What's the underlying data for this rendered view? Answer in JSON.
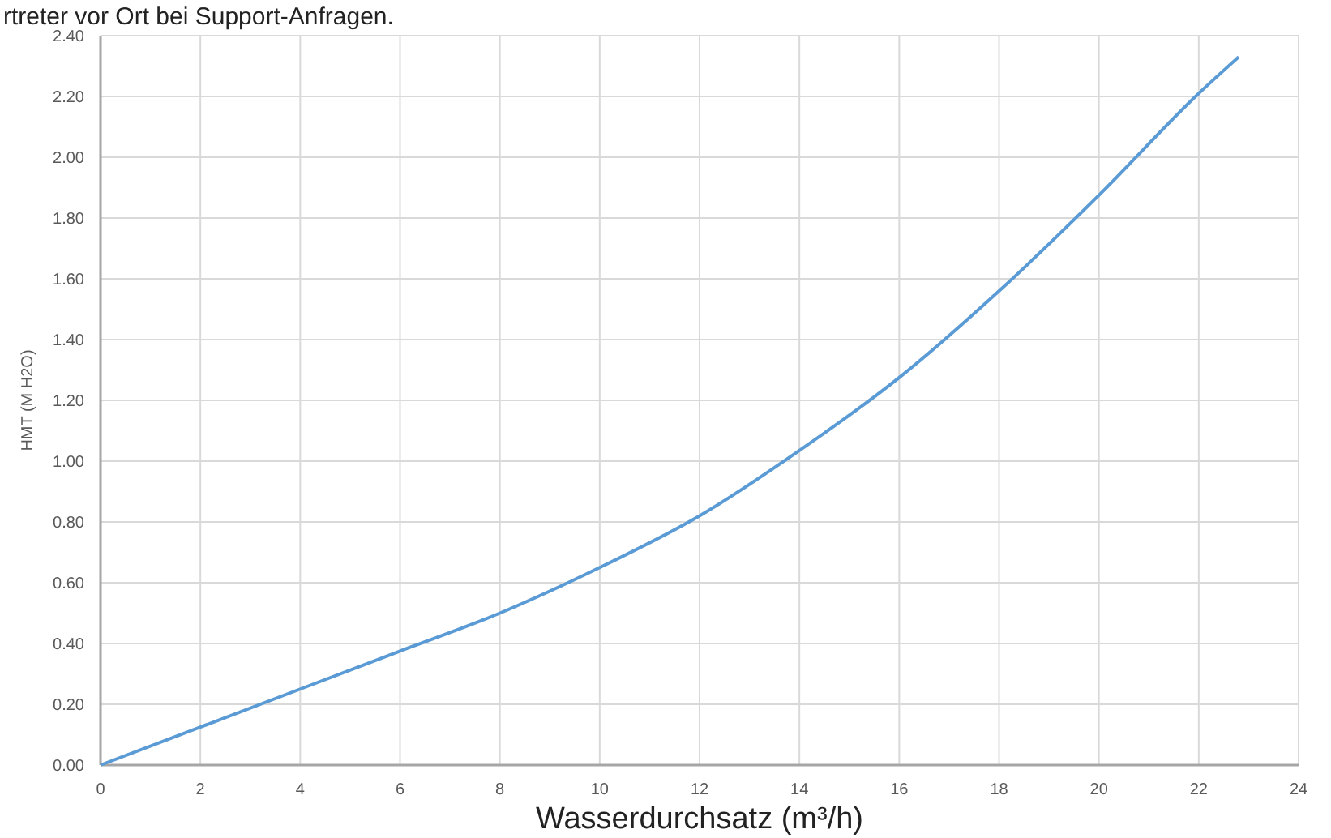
{
  "chart_data": {
    "type": "line",
    "xlabel": "Wasserdurchsatz (m³/h)",
    "ylabel": "HMT (M H2O)",
    "annotations": [
      "rtreter vor Ort bei Support-Anfragen."
    ],
    "x": [
      0,
      2,
      4,
      6,
      8,
      10,
      12,
      14,
      16,
      18,
      20,
      22,
      22.8
    ],
    "series": [
      {
        "color": "#5b9bd5",
        "values": [
          0,
          0.125,
          0.25,
          0.375,
          0.5,
          0.65,
          0.82,
          1.035,
          1.275,
          1.56,
          1.875,
          2.21,
          2.33
        ]
      }
    ],
    "xlim": [
      0,
      24
    ],
    "xticks": [
      0,
      2,
      4,
      6,
      8,
      10,
      12,
      14,
      16,
      18,
      20,
      22,
      24
    ],
    "ylim": [
      0,
      2.4
    ],
    "yticks": [
      {
        "value": 0,
        "label": "0.00"
      },
      {
        "value": 0.2,
        "label": "0.20"
      },
      {
        "value": 0.4,
        "label": "0.40"
      },
      {
        "value": 0.6,
        "label": "0.60"
      },
      {
        "value": 0.8,
        "label": "0.80"
      },
      {
        "value": 1,
        "label": "1.00"
      },
      {
        "value": 1.2,
        "label": "1.20"
      },
      {
        "value": 1.4,
        "label": "1.40"
      },
      {
        "value": 1.6,
        "label": "1.60"
      },
      {
        "value": 1.8,
        "label": "1.80"
      },
      {
        "value": 2,
        "label": "2.00"
      },
      {
        "value": 2.2,
        "label": "2.20"
      },
      {
        "value": 2.4,
        "label": "2.40"
      }
    ],
    "grid": true,
    "marker": "none",
    "line_style": "solid"
  }
}
